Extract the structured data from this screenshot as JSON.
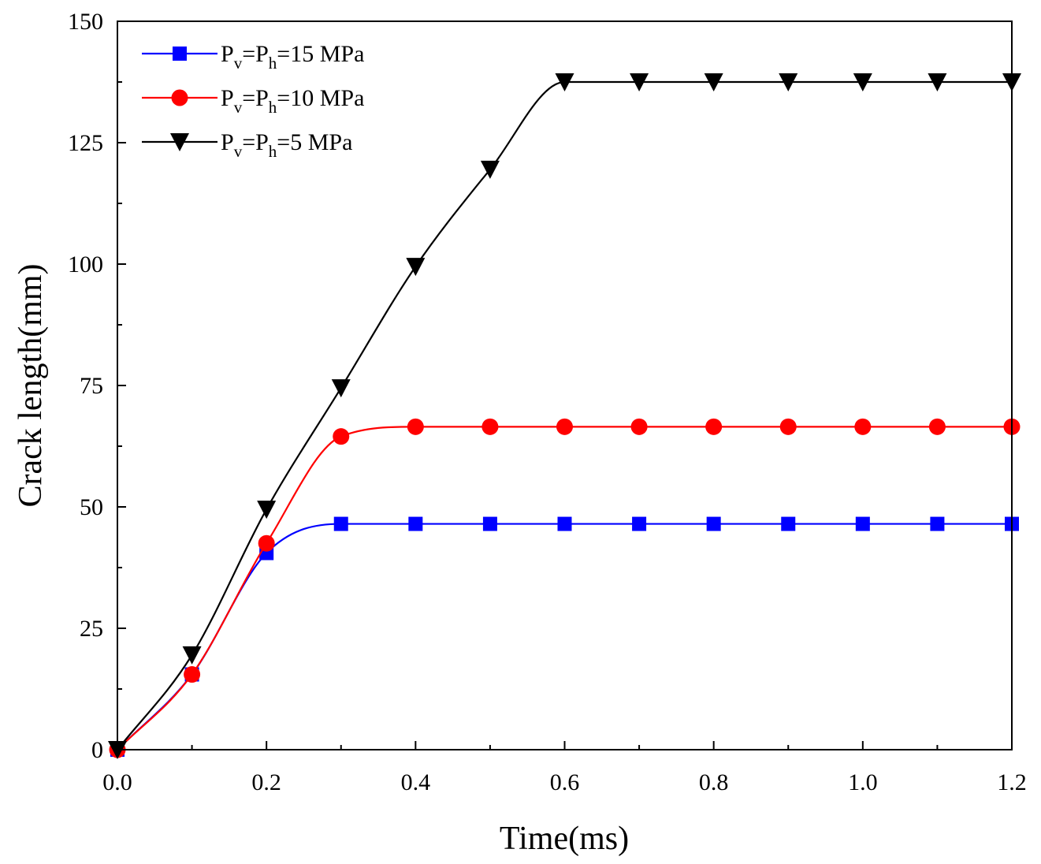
{
  "chart_data": {
    "type": "line",
    "title": "",
    "xlabel": "Time(ms)",
    "ylabel": "Crack length(mm)",
    "xlim": [
      0.0,
      1.2
    ],
    "ylim": [
      0,
      150
    ],
    "xticks": [
      0.0,
      0.2,
      0.4,
      0.6,
      0.8,
      1.0,
      1.2
    ],
    "xtick_labels": [
      "0.0",
      "0.2",
      "0.4",
      "0.6",
      "0.8",
      "1.0",
      "1.2"
    ],
    "yticks": [
      0,
      25,
      50,
      75,
      100,
      125,
      150
    ],
    "ytick_labels": [
      "0",
      "25",
      "50",
      "75",
      "100",
      "125",
      "150"
    ],
    "grid": false,
    "legend_position": "top-left",
    "x": [
      0.0,
      0.1,
      0.2,
      0.3,
      0.4,
      0.5,
      0.6,
      0.7,
      0.8,
      0.9,
      1.0,
      1.1,
      1.2
    ],
    "series": [
      {
        "name": "Pv=Ph=15 MPa",
        "legend": {
          "p1": "P",
          "s1": "v",
          "mid": "=P",
          "s2": "h",
          "rest": "=15 MPa"
        },
        "color": "#0000ff",
        "marker": "square",
        "values": [
          0,
          15.5,
          40.5,
          46.5,
          46.5,
          46.5,
          46.5,
          46.5,
          46.5,
          46.5,
          46.5,
          46.5,
          46.5
        ]
      },
      {
        "name": "Pv=Ph=10 MPa",
        "legend": {
          "p1": "P",
          "s1": "v",
          "mid": "=P",
          "s2": "h",
          "rest": "=10 MPa"
        },
        "color": "#ff0000",
        "marker": "circle",
        "values": [
          0,
          15.5,
          42.5,
          64.5,
          66.5,
          66.5,
          66.5,
          66.5,
          66.5,
          66.5,
          66.5,
          66.5,
          66.5
        ]
      },
      {
        "name": "Pv=Ph=5 MPa",
        "legend": {
          "p1": "P",
          "s1": "v",
          "mid": "=P",
          "s2": "h",
          "rest": "=5 MPa"
        },
        "color": "#000000",
        "marker": "triangle-down",
        "values": [
          0,
          19.5,
          49.5,
          74.5,
          99.5,
          119.5,
          137.5,
          137.5,
          137.5,
          137.5,
          137.5,
          137.5,
          137.5
        ]
      }
    ]
  }
}
